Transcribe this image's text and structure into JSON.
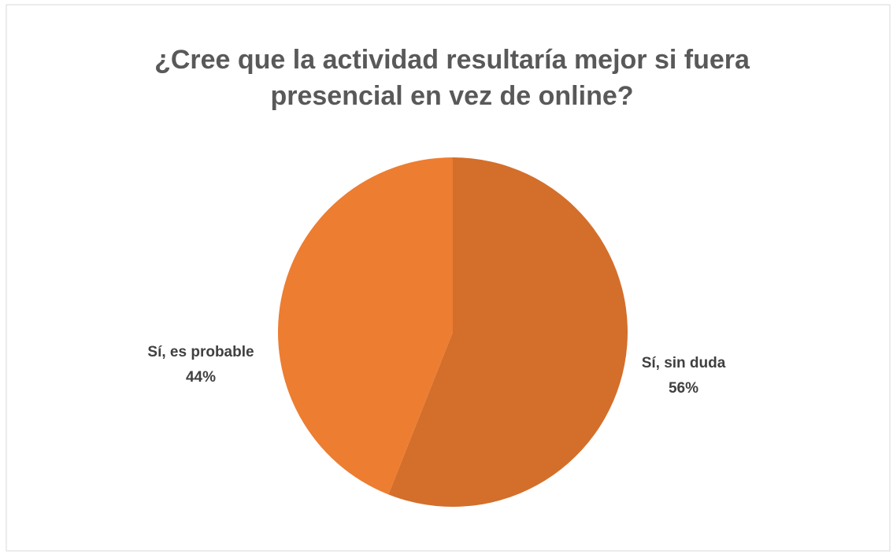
{
  "chart_data": {
    "type": "pie",
    "title": [
      "¿Cree que la actividad resultaría mejor si fuera",
      "presencial en vez de online?"
    ],
    "categories": [
      "Sí, sin duda",
      "Sí, es probable"
    ],
    "values": [
      56,
      44
    ],
    "value_labels": [
      "56%",
      "44%"
    ],
    "colors": [
      "#D36F2B",
      "#ED7D31"
    ]
  }
}
